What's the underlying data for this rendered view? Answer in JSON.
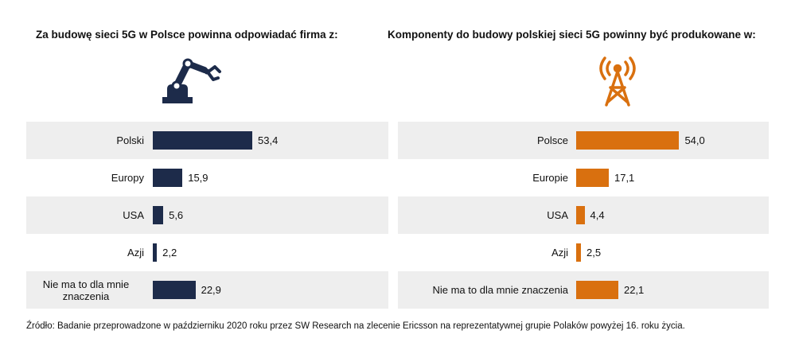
{
  "colors": {
    "left_bar": "#1d2b4a",
    "right_bar": "#d9700f",
    "row_shade": "#eeeeee"
  },
  "icons": {
    "left": "robot-arm-icon",
    "right": "antenna-tower-icon"
  },
  "chart_data": [
    {
      "type": "bar",
      "orientation": "horizontal",
      "title": "Za budowę sieci 5G w Polsce powinna odpowiadać firma z:",
      "categories": [
        "Polski",
        "Europy",
        "USA",
        "Azji",
        "Nie ma to dla mnie znaczenia"
      ],
      "values": [
        53.4,
        15.9,
        5.6,
        2.2,
        22.9
      ],
      "value_labels": [
        "53,4",
        "15,9",
        "5,6",
        "2,2",
        "22,9"
      ],
      "xlim": [
        0,
        100
      ],
      "grid": false,
      "legend": "none"
    },
    {
      "type": "bar",
      "orientation": "horizontal",
      "title": "Komponenty do budowy polskiej sieci 5G powinny być produkowane w:",
      "categories": [
        "Polsce",
        "Europie",
        "USA",
        "Azji",
        "Nie ma to dla mnie znaczenia"
      ],
      "values": [
        54.0,
        17.1,
        4.4,
        2.5,
        22.1
      ],
      "value_labels": [
        "54,0",
        "17,1",
        "4,4",
        "2,5",
        "22,1"
      ],
      "xlim": [
        0,
        100
      ],
      "grid": false,
      "legend": "none"
    }
  ],
  "footnote": "Źródło: Badanie przeprowadzone w październiku 2020 roku przez SW Research na zlecenie Ericsson na reprezentatywnej grupie Polaków powyżej 16. roku życia."
}
